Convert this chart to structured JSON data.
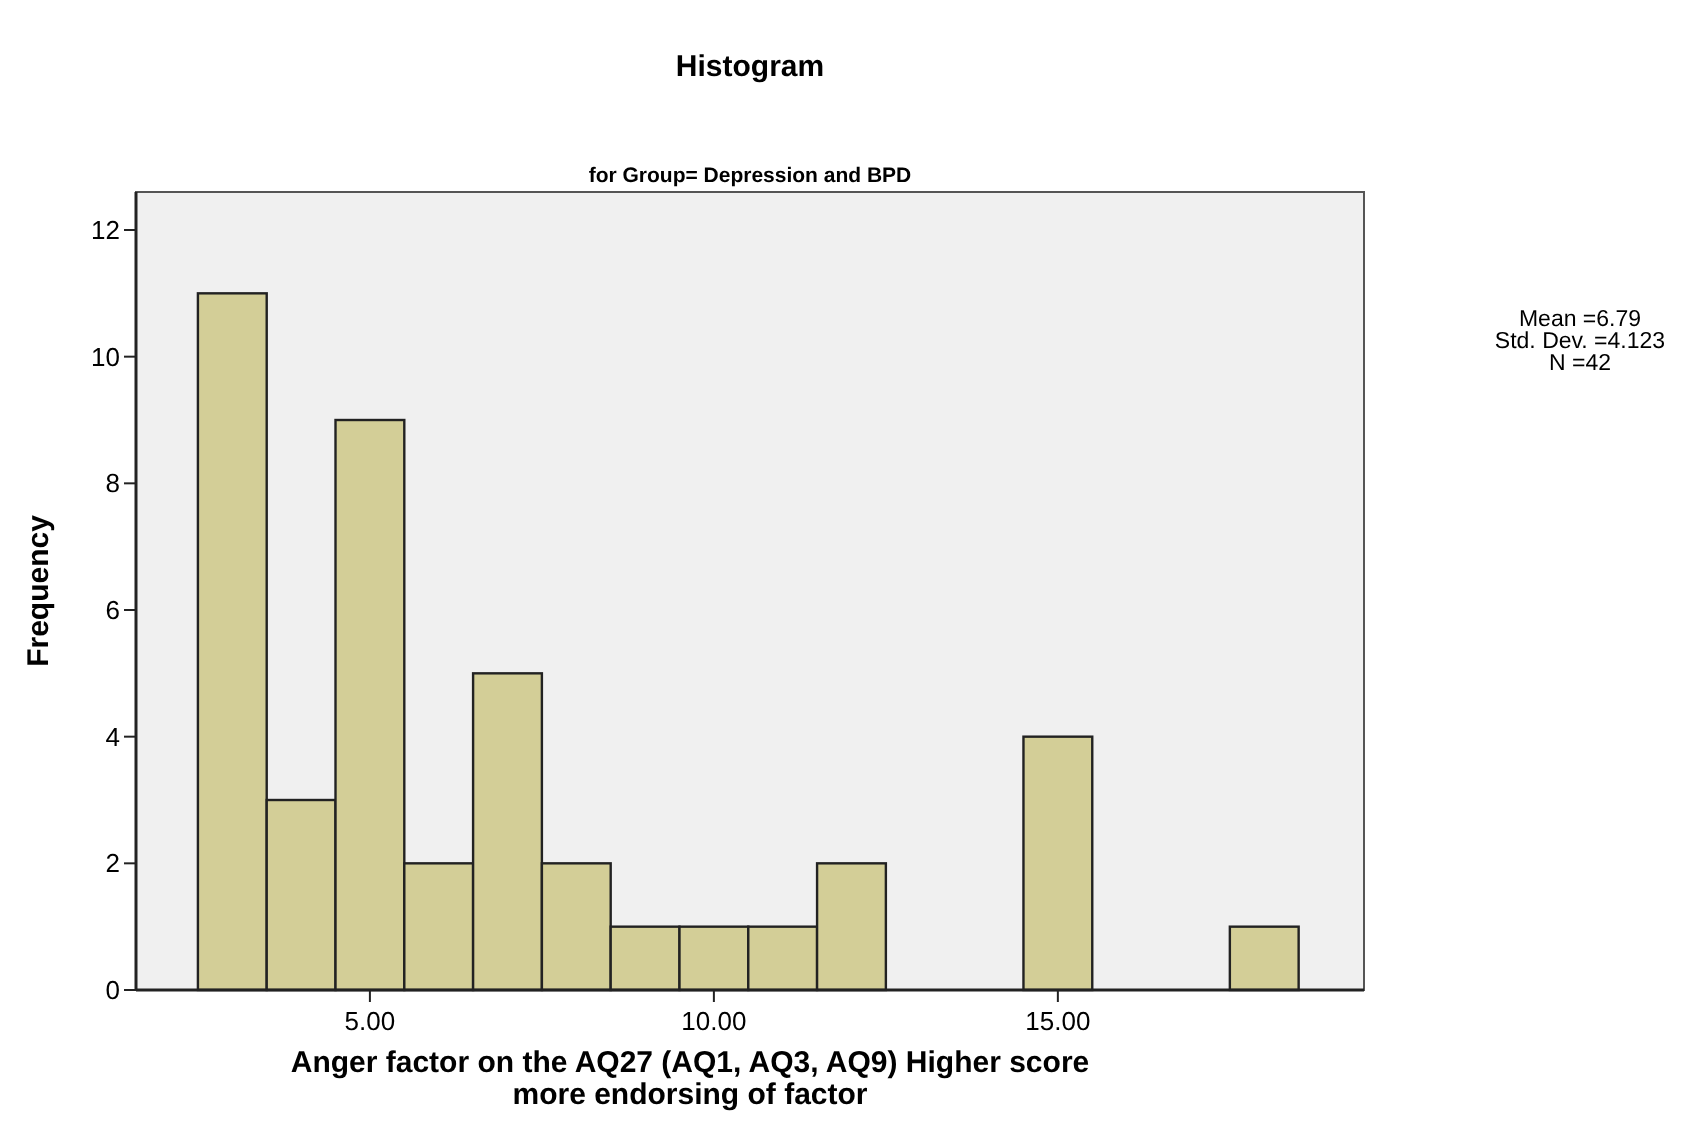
{
  "chart_data": {
    "type": "histogram",
    "title": "Histogram",
    "subtitle": "for Group= Depression and BPD",
    "xlabel": "Anger factor on the AQ27 (AQ1, AQ3, AQ9) Higher score more endorsing of factor",
    "ylabel": "Frequency",
    "bins": [
      2.5,
      3.5,
      4.5,
      5.5,
      6.5,
      7.5,
      8.5,
      9.5,
      10.5,
      11.5,
      12.5,
      13.5,
      14.5,
      15.5,
      16.5,
      17.5,
      18.5
    ],
    "values": [
      11,
      3,
      9,
      2,
      5,
      2,
      1,
      1,
      1,
      2,
      0,
      0,
      4,
      0,
      0,
      1
    ],
    "color": "#d3ce97",
    "xlim": [
      1.6,
      19.45
    ],
    "xticks": [
      {
        "value": 5,
        "label": "5.00"
      },
      {
        "value": 10,
        "label": "10.00"
      },
      {
        "value": 15,
        "label": "15.00"
      }
    ],
    "ylim": [
      0,
      12.6
    ],
    "yticks": [
      0,
      2,
      4,
      6,
      8,
      10,
      12
    ],
    "annotations": [
      "Mean =6.79",
      "Std. Dev. =4.123",
      "N =42"
    ]
  }
}
